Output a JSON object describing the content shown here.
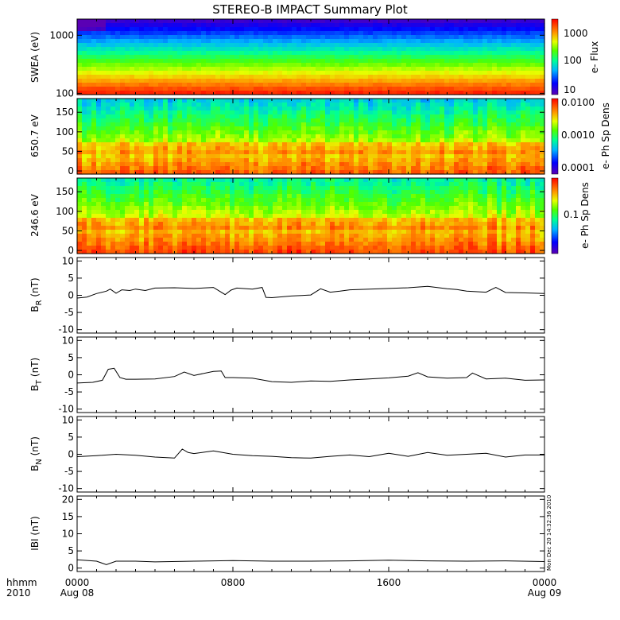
{
  "title": "STEREO-B IMPACT Summary Plot",
  "x_axis": {
    "hhmm_label": "hhmm",
    "year_label": "2010",
    "ticks": [
      {
        "t": 0,
        "line1": "0000",
        "line2": "Aug 08"
      },
      {
        "t": 8,
        "line1": "0800",
        "line2": ""
      },
      {
        "t": 16,
        "line1": "1600",
        "line2": ""
      },
      {
        "t": 24,
        "line1": "0000",
        "line2": "Aug 09"
      }
    ]
  },
  "timestamp": "Mon Dec 20 14:32:36 2010",
  "colorbar_labels": {
    "swea": "e- Flux",
    "pad650": "e- Ph Sp Dens",
    "pad246": "e- Ph Sp Dens"
  },
  "colorbar_ticks": {
    "swea": [
      "1000",
      "100",
      "10"
    ],
    "pad650": [
      "0.0100",
      "0.0010",
      "0.0001"
    ],
    "pad246": [
      "0.1"
    ]
  },
  "chart_data": [
    {
      "type": "heatmap",
      "name": "swea",
      "ylabel": "SWEA (eV)",
      "ylog": true,
      "ylim": [
        95,
        1900
      ],
      "yticks": [
        {
          "v": 1000,
          "label": "1000"
        },
        {
          "v": 100,
          "label": "100"
        }
      ],
      "zlog": true,
      "zlim": [
        10,
        2500
      ],
      "xlim": [
        0,
        24
      ]
    },
    {
      "type": "heatmap",
      "name": "pad650",
      "ylabel": "650.7 eV",
      "ylim": [
        -8,
        185
      ],
      "yticks": [
        {
          "v": 0,
          "label": "0"
        },
        {
          "v": 50,
          "label": "50"
        },
        {
          "v": 100,
          "label": "100"
        },
        {
          "v": 150,
          "label": "150"
        }
      ],
      "zlog": true,
      "zlim": [
        0.0001,
        0.01
      ],
      "xlim": [
        0,
        24
      ]
    },
    {
      "type": "heatmap",
      "name": "pad246",
      "ylabel": "246.6 eV",
      "ylim": [
        -8,
        185
      ],
      "yticks": [
        {
          "v": 0,
          "label": "0"
        },
        {
          "v": 50,
          "label": "50"
        },
        {
          "v": 100,
          "label": "100"
        },
        {
          "v": 150,
          "label": "150"
        }
      ],
      "zlog": true,
      "zlim": [
        0.02,
        0.6
      ],
      "xlim": [
        0,
        24
      ]
    },
    {
      "type": "line",
      "name": "br",
      "ylabel_main": "B",
      "ylabel_sub": "R",
      "ylabel_unit": " (nT)",
      "ylim": [
        -11,
        11
      ],
      "yticks": [
        -10,
        -5,
        0,
        5,
        10
      ],
      "xlim": [
        0,
        24
      ],
      "x": [
        0,
        0.5,
        1.0,
        1.5,
        1.7,
        2.0,
        2.3,
        2.7,
        3.0,
        3.5,
        4.0,
        5.0,
        6.0,
        7.0,
        7.6,
        7.9,
        8.2,
        9.0,
        9.5,
        9.7,
        10.0,
        11.0,
        12.0,
        12.5,
        13.0,
        13.5,
        14.0,
        15.0,
        16.0,
        17.0,
        18.0,
        19.0,
        19.5,
        20.0,
        21.0,
        21.5,
        22.0,
        23.0,
        24.0
      ],
      "values": [
        -0.8,
        -0.5,
        0.5,
        1.2,
        1.8,
        0.6,
        1.6,
        1.4,
        1.8,
        1.4,
        2.1,
        2.2,
        2.0,
        2.3,
        0.2,
        1.5,
        2.1,
        1.8,
        2.3,
        -0.6,
        -0.7,
        -0.2,
        0.1,
        1.9,
        0.9,
        1.2,
        1.6,
        1.8,
        2.0,
        2.2,
        2.6,
        1.9,
        1.7,
        1.2,
        0.9,
        2.3,
        0.8,
        0.7,
        0.5
      ]
    },
    {
      "type": "line",
      "name": "bt",
      "ylabel_main": "B",
      "ylabel_sub": "T",
      "ylabel_unit": " (nT)",
      "ylim": [
        -11,
        11
      ],
      "yticks": [
        -10,
        -5,
        0,
        5,
        10
      ],
      "xlim": [
        0,
        24
      ],
      "x": [
        0,
        0.8,
        1.3,
        1.6,
        1.9,
        2.2,
        2.5,
        3.0,
        4.0,
        5.0,
        5.5,
        6.0,
        7.0,
        7.4,
        7.6,
        8.0,
        9.0,
        10.0,
        11.0,
        12.0,
        13.0,
        14.0,
        15.0,
        16.0,
        17.0,
        17.5,
        18.0,
        19.0,
        20.0,
        20.3,
        21.0,
        22.0,
        23.0,
        24.0
      ],
      "values": [
        -2.4,
        -2.2,
        -1.6,
        1.6,
        1.9,
        -0.8,
        -1.3,
        -1.3,
        -1.2,
        -0.5,
        0.8,
        -0.2,
        1.0,
        1.1,
        -0.8,
        -0.8,
        -1.0,
        -2.0,
        -2.2,
        -1.8,
        -1.9,
        -1.5,
        -1.2,
        -0.9,
        -0.4,
        0.6,
        -0.6,
        -1.0,
        -0.8,
        0.5,
        -1.2,
        -1.0,
        -1.6,
        -1.5
      ]
    },
    {
      "type": "line",
      "name": "bn",
      "ylabel_main": "B",
      "ylabel_sub": "N",
      "ylabel_unit": " (nT)",
      "ylim": [
        -11,
        11
      ],
      "yticks": [
        -10,
        -5,
        0,
        5,
        10
      ],
      "xlim": [
        0,
        24
      ],
      "x": [
        0,
        1.0,
        2.0,
        3.0,
        4.0,
        5.0,
        5.4,
        5.7,
        6.0,
        7.0,
        8.0,
        9.0,
        10.0,
        11.0,
        12.0,
        13.0,
        14.0,
        15.0,
        16.0,
        17.0,
        18.0,
        19.0,
        20.0,
        21.0,
        22.0,
        23.0,
        24.0
      ],
      "values": [
        -0.7,
        -0.4,
        0.0,
        -0.3,
        -0.8,
        -1.1,
        1.5,
        0.5,
        0.2,
        1.0,
        0.0,
        -0.4,
        -0.6,
        -1.0,
        -1.1,
        -0.6,
        -0.2,
        -0.7,
        0.3,
        -0.6,
        0.5,
        -0.3,
        0.0,
        0.3,
        -0.8,
        -0.2,
        -0.2
      ]
    },
    {
      "type": "line",
      "name": "bmag",
      "ylabel_main": "IBI",
      "ylabel_sub": "",
      "ylabel_unit": " (nT)",
      "ylim": [
        -1,
        21
      ],
      "yticks": [
        0,
        5,
        10,
        15,
        20
      ],
      "xlim": [
        0,
        24
      ],
      "x": [
        0,
        1.0,
        1.5,
        2.0,
        3.0,
        4.0,
        6.0,
        8.0,
        10.0,
        12.0,
        14.0,
        16.0,
        18.0,
        20.0,
        22.0,
        24.0
      ],
      "values": [
        2.4,
        2.0,
        1.0,
        2.0,
        2.0,
        1.8,
        2.0,
        2.2,
        2.0,
        2.0,
        2.1,
        2.3,
        2.1,
        2.0,
        2.1,
        1.9
      ]
    }
  ]
}
